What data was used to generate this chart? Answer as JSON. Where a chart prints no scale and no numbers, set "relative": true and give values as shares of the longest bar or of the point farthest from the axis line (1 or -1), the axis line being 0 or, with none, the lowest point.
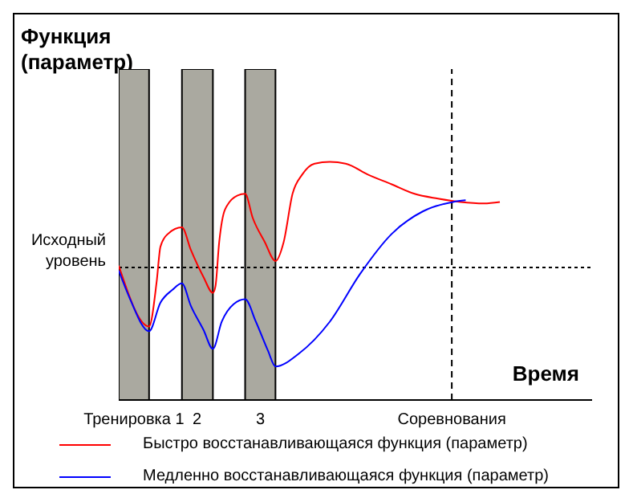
{
  "chart_data": {
    "type": "line",
    "relative": true,
    "ylabel": "Функция (параметр)",
    "xlabel": "Время",
    "xlim": [
      0.76,
      8.25
    ],
    "xticks": [
      {
        "value": 1,
        "label": "Тренировка 1"
      },
      2,
      3,
      {
        "value": 6.03,
        "label": "Соревнования"
      }
    ],
    "tick_labels": "x",
    "legend": "bottom",
    "line_style": "solid",
    "bands": [
      {
        "axis": "x",
        "from": 0.76,
        "to": 1.24,
        "color": "#aaa9a0"
      },
      {
        "axis": "x",
        "from": 1.76,
        "to": 2.25,
        "color": "#aaa9a0"
      },
      {
        "axis": "x",
        "from": 2.76,
        "to": 3.24,
        "color": "#aaa9a0"
      }
    ],
    "ref_lines": [
      {
        "axis": "y",
        "value": 0.557,
        "label": "Исходный уровень",
        "line_style": "dotted"
      },
      {
        "axis": "x",
        "value": 6.03,
        "line_style": "dashed"
      }
    ],
    "series": [
      {
        "name": "Быстро восстанавливающаяся функция (параметр)",
        "color": "#ff0000",
        "x": [
          0.76,
          1.24,
          1.36,
          1.42,
          1.54,
          1.76,
          1.9,
          2.1,
          2.25,
          2.29,
          2.35,
          2.44,
          2.64,
          2.76,
          2.88,
          3.07,
          3.24,
          3.37,
          3.51,
          3.66,
          3.86,
          4.1,
          4.35,
          4.71,
          5.08,
          5.44,
          5.81,
          6.17,
          6.54,
          6.79
        ],
        "values": [
          0.564,
          0.309,
          0.497,
          0.644,
          0.698,
          0.725,
          0.631,
          0.517,
          0.45,
          0.477,
          0.664,
          0.799,
          0.859,
          0.866,
          0.765,
          0.664,
          0.584,
          0.664,
          0.866,
          0.946,
          0.993,
          1,
          0.993,
          0.946,
          0.906,
          0.866,
          0.846,
          0.832,
          0.826,
          0.832
        ]
      },
      {
        "name": "Медленно восстанавливающаяся функция (параметр)",
        "color": "#0000ff",
        "x": [
          0.76,
          0.93,
          1.24,
          1.42,
          1.61,
          1.76,
          1.9,
          2.1,
          2.25,
          2.39,
          2.58,
          2.76,
          2.93,
          3.12,
          3.24,
          3.61,
          4.1,
          4.58,
          5.08,
          5.57,
          6.05,
          6.25
        ],
        "values": [
          0.544,
          0.43,
          0.289,
          0.409,
          0.463,
          0.49,
          0.396,
          0.295,
          0.215,
          0.329,
          0.403,
          0.423,
          0.329,
          0.208,
          0.141,
          0.195,
          0.329,
          0.53,
          0.698,
          0.792,
          0.832,
          0.839
        ]
      }
    ]
  }
}
